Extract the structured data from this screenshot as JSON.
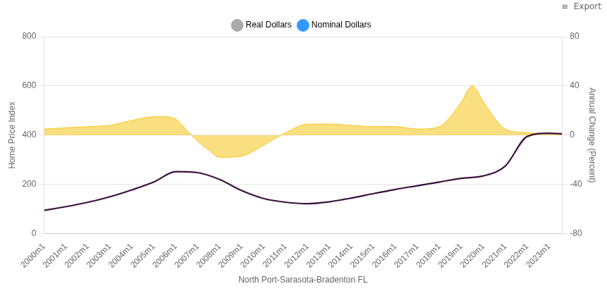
{
  "chart_data": {
    "type": "line",
    "xlabel": "North Port-Sarasota-Bradenton FL",
    "ylabel": "Home Price Index",
    "y2label": "Annual Change (Percent)",
    "legend": "top",
    "legend_entries": [
      {
        "name": "Real Dollars",
        "color": "#aaaaaa"
      },
      {
        "name": "Nominal Dollars",
        "color": "#3399ff"
      }
    ],
    "annotations": [
      {
        "text": "≡  Export"
      }
    ],
    "grid": true,
    "xlim": [
      0,
      283
    ],
    "xticks": [
      {
        "value": 0,
        "label": "2000m1"
      },
      {
        "value": 12,
        "label": "2001m1"
      },
      {
        "value": 24,
        "label": "2002m1"
      },
      {
        "value": 36,
        "label": "2003m1"
      },
      {
        "value": 48,
        "label": "2004m1"
      },
      {
        "value": 60,
        "label": "2005m1"
      },
      {
        "value": 72,
        "label": "2006m1"
      },
      {
        "value": 84,
        "label": "2007m1"
      },
      {
        "value": 96,
        "label": "2008m1"
      },
      {
        "value": 108,
        "label": "2009m1"
      },
      {
        "value": 120,
        "label": "2010m1"
      },
      {
        "value": 132,
        "label": "2011m1"
      },
      {
        "value": 144,
        "label": "2012m1"
      },
      {
        "value": 156,
        "label": "2013m1"
      },
      {
        "value": 168,
        "label": "2014m1"
      },
      {
        "value": 180,
        "label": "2015m1"
      },
      {
        "value": 192,
        "label": "2016m1"
      },
      {
        "value": 204,
        "label": "2017m1"
      },
      {
        "value": 216,
        "label": "2018m1"
      },
      {
        "value": 228,
        "label": "2019m1"
      },
      {
        "value": 240,
        "label": "2020m1"
      },
      {
        "value": 252,
        "label": "2021m1"
      },
      {
        "value": 264,
        "label": "2022m1"
      },
      {
        "value": 276,
        "label": "2023m1"
      }
    ],
    "ylim": [
      0,
      800
    ],
    "yticks": [
      0,
      200,
      400,
      600,
      800
    ],
    "y2lim": [
      -80,
      80
    ],
    "y2ticks": [
      -80,
      -40,
      0,
      40,
      80
    ],
    "series": [
      {
        "type": "area",
        "axis": "y2",
        "color": "#f5c518",
        "x": [
          0,
          12,
          24,
          36,
          48,
          60,
          66,
          72,
          78,
          84,
          90,
          96,
          108,
          120,
          132,
          144,
          156,
          168,
          180,
          192,
          204,
          216,
          222,
          228,
          234,
          240,
          252,
          264,
          270,
          276,
          283
        ],
        "values": [
          5,
          6,
          7,
          8,
          12,
          15,
          15,
          13,
          4,
          -5,
          -12,
          -18,
          -17,
          -8,
          2,
          9,
          9,
          8,
          7,
          7,
          5,
          7,
          15,
          27,
          40,
          27,
          5,
          2,
          1.5,
          1.5,
          1.5
        ]
      },
      {
        "type": "line",
        "color": "#3b1040",
        "x": [
          0,
          12,
          24,
          36,
          48,
          60,
          72,
          84,
          96,
          108,
          120,
          132,
          144,
          156,
          168,
          180,
          192,
          204,
          216,
          228,
          240,
          252,
          264,
          276,
          283
        ],
        "values": [
          95,
          110,
          128,
          150,
          178,
          210,
          252,
          248,
          220,
          175,
          143,
          128,
          122,
          130,
          145,
          163,
          180,
          195,
          210,
          225,
          235,
          275,
          395,
          408,
          405
        ]
      }
    ]
  }
}
